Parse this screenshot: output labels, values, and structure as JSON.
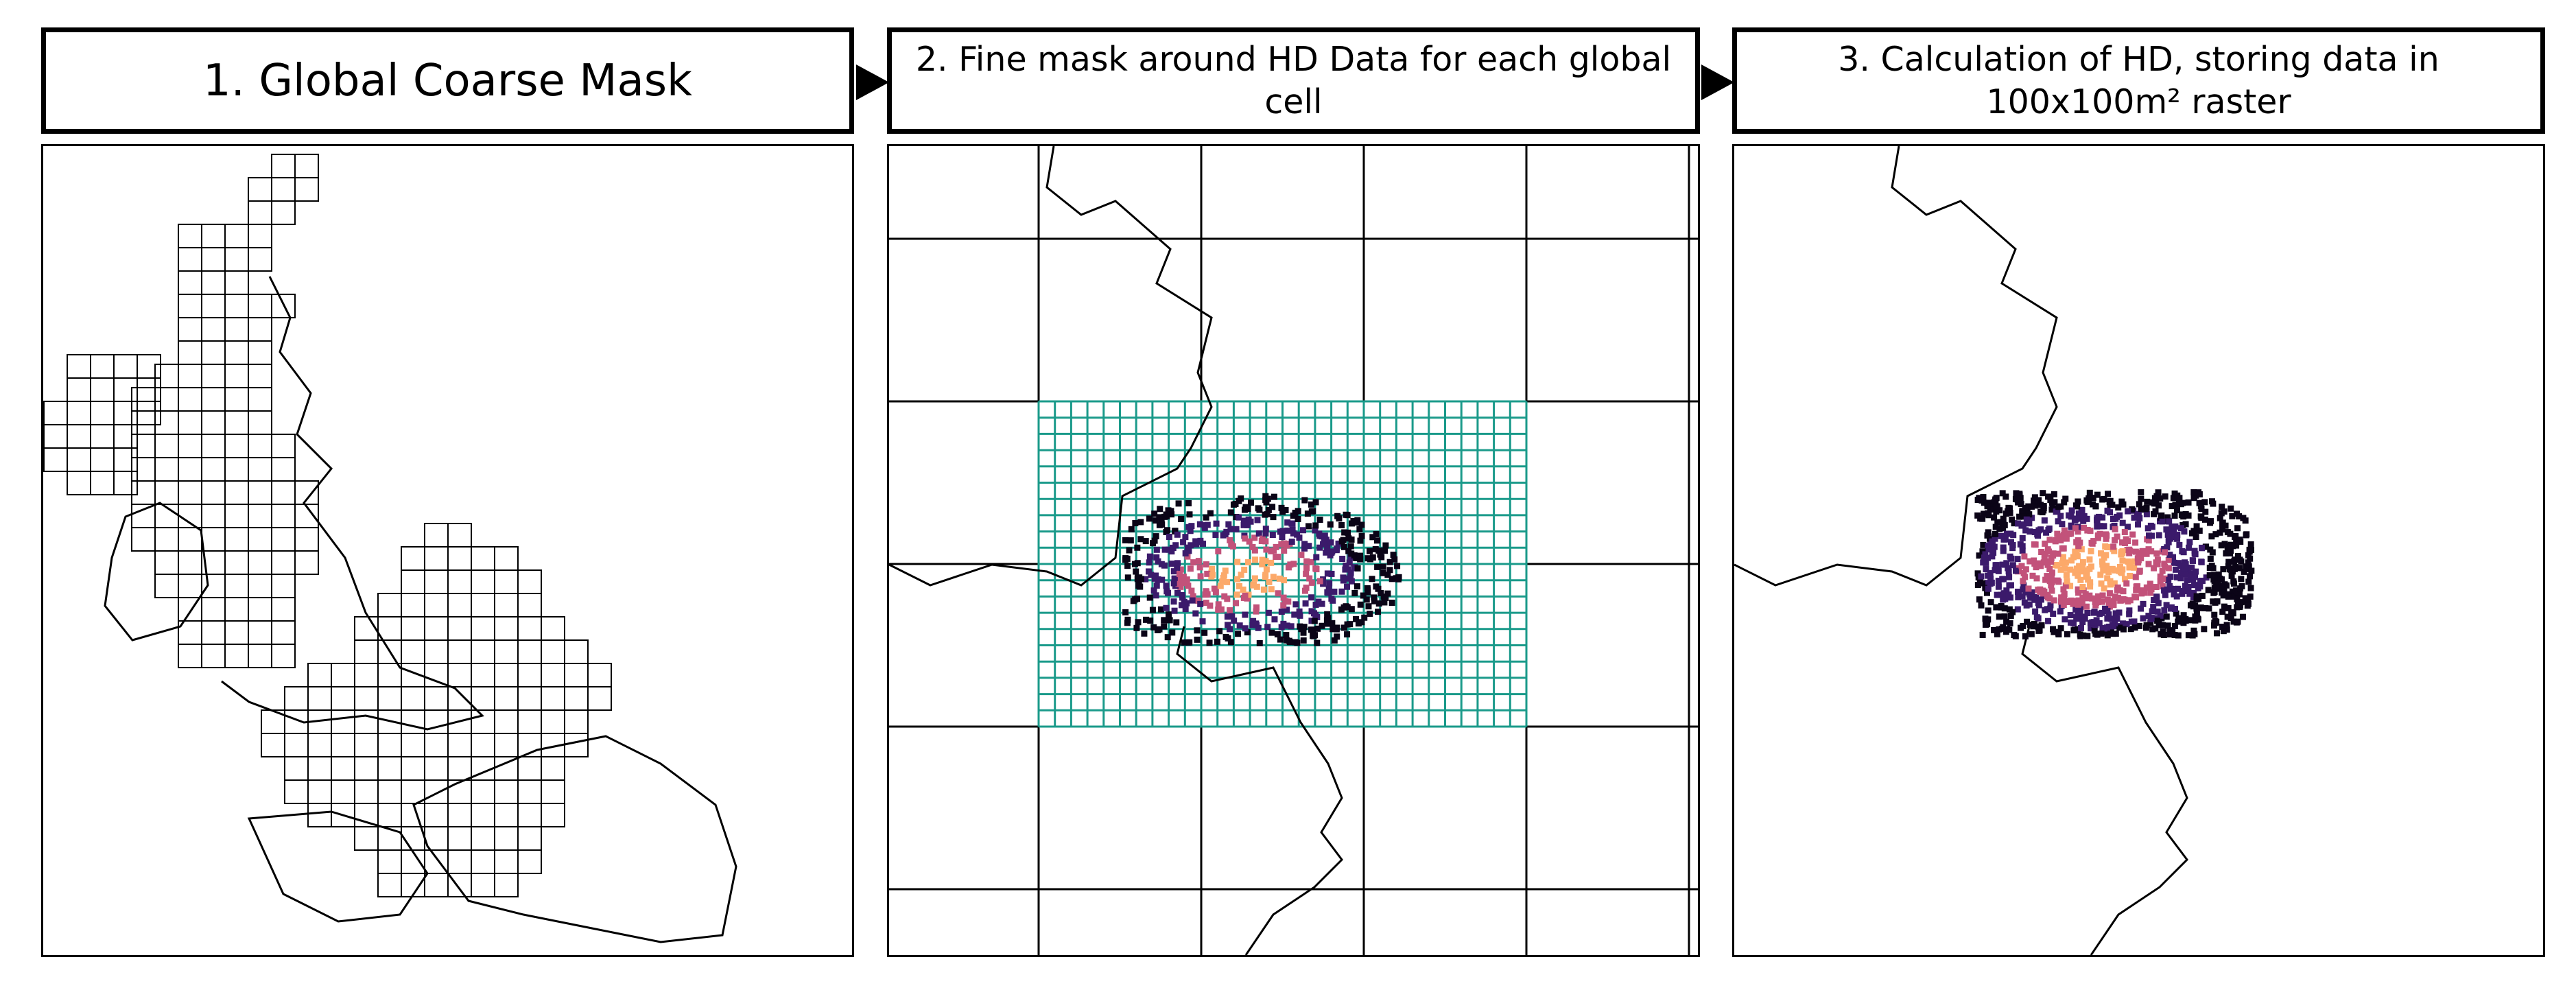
{
  "steps": [
    {
      "label": "1. Global Coarse Mask"
    },
    {
      "label": "2. Fine mask around HD Data for each global cell"
    },
    {
      "label": "3. Calculation of HD, storing data in 100x100m² raster"
    }
  ],
  "colors": {
    "border": "#000000",
    "fine_grid": "#1a9a8a",
    "density_low": "#0b0417",
    "density_mid": "#3b1a6b",
    "density_high": "#c2527a",
    "density_peak": "#fca96a"
  },
  "icons": [
    "arrow-right-icon",
    "arrow-right-icon"
  ]
}
